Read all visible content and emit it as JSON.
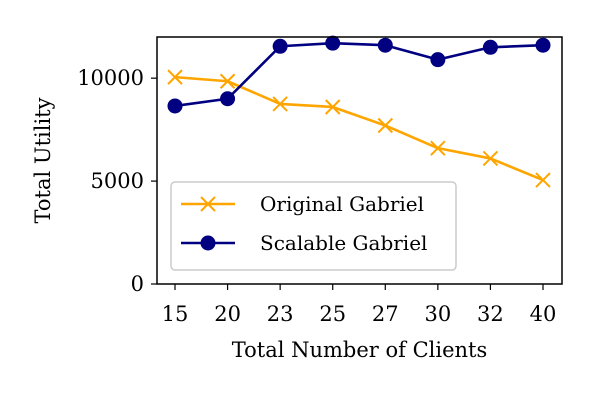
{
  "chart_data": {
    "type": "line",
    "xlabel": "Total Number of Clients",
    "ylabel": "Total Utility",
    "categories": [
      "15",
      "20",
      "23",
      "25",
      "27",
      "30",
      "32",
      "40"
    ],
    "ylim": [
      0,
      12000
    ],
    "yticks": [
      0,
      5000,
      10000
    ],
    "grid": false,
    "legend": "lower-left",
    "series": [
      {
        "name": "Original Gabriel",
        "color": "#FFA500",
        "marker": "x",
        "values": [
          10050,
          9850,
          8750,
          8600,
          7700,
          6600,
          6100,
          5050
        ]
      },
      {
        "name": "Scalable Gabriel",
        "color": "#000080",
        "marker": "circle",
        "values": [
          8650,
          9000,
          11550,
          11700,
          11600,
          10900,
          11500,
          11600
        ]
      }
    ]
  }
}
